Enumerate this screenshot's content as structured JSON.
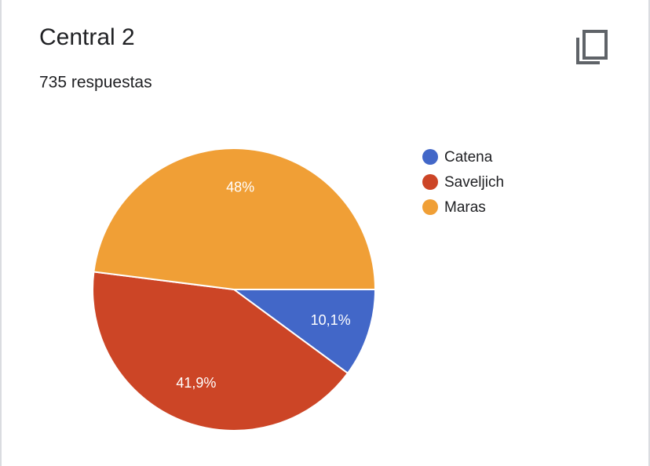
{
  "chart_data": {
    "type": "pie",
    "title": "Central 2",
    "subtitle": "735 respuestas",
    "categories": [
      "Catena",
      "Saveljich",
      "Maras"
    ],
    "values": [
      10.1,
      41.9,
      48
    ],
    "value_labels": [
      "10,1%",
      "41,9%",
      "48%"
    ],
    "colors": [
      "#4267c8",
      "#cc4526",
      "#f09f36"
    ],
    "legend": "right"
  }
}
